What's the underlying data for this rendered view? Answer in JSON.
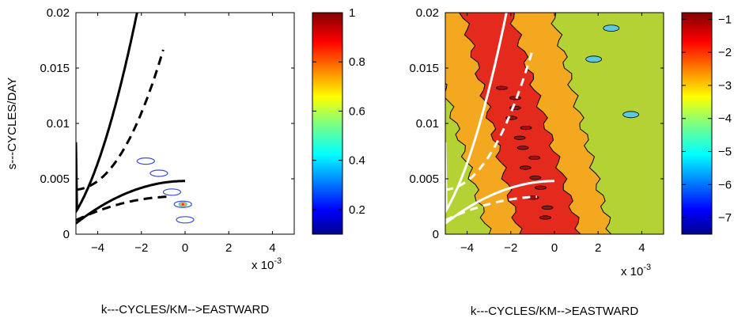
{
  "chart_data": [
    {
      "type": "heatmap",
      "panel": "left",
      "title": "",
      "xlabel": "k---CYCLES/KM-->EASTWARD",
      "ylabel": "s---CYCLES/DAY",
      "x_multiplier": "x 10",
      "x_multiplier_exp": "-3",
      "xlim": [
        -0.005,
        0.005
      ],
      "ylim": [
        0,
        0.02
      ],
      "x_ticks": [
        -4,
        -2,
        0,
        2,
        4
      ],
      "y_ticks": [
        "0",
        "0.005",
        "0.01",
        "0.015",
        "0.02"
      ],
      "colorbar": {
        "range": [
          0.1,
          1.0
        ],
        "ticks": [
          "0.2",
          "0.4",
          "0.6",
          "0.8",
          "1"
        ],
        "colormap": "jet"
      },
      "overlay_curves": [
        {
          "style": "solid",
          "shape": "dispersion curve rising from (-5e-3, 0.0083) to (-2.2e-3, 0.02)"
        },
        {
          "style": "dashed",
          "shape": "dispersion curve rising from (-5e-3, 0.0046) to (-1.1e-3, 0.02)"
        },
        {
          "style": "solid",
          "shape": "descending curve from (-5e-3, 0.0048) to (0, 0)"
        },
        {
          "style": "dashed",
          "shape": "descending curve from (-5e-3, 0.0032) to (-0.8e-3, 0.0012)"
        }
      ],
      "contour_blobs": [
        {
          "k": -0.0018,
          "s": 0.0066
        },
        {
          "k": -0.0012,
          "s": 0.0055
        },
        {
          "k": -0.0006,
          "s": 0.0038
        },
        {
          "k": -0.0001,
          "s": 0.0027
        },
        {
          "k": 0.0,
          "s": 0.0013
        }
      ]
    },
    {
      "type": "heatmap",
      "panel": "right",
      "title": "",
      "xlabel": "k---CYCLES/KM-->EASTWARD",
      "ylabel": "",
      "x_multiplier": "x 10",
      "x_multiplier_exp": "-3",
      "xlim": [
        -0.005,
        0.005
      ],
      "ylim": [
        0,
        0.02
      ],
      "x_ticks": [
        -4,
        -2,
        0,
        2,
        4
      ],
      "y_ticks": [
        "0",
        "0.005",
        "0.01",
        "0.015",
        "0.02"
      ],
      "colorbar": {
        "range": [
          -7.5,
          -0.8
        ],
        "ticks": [
          "-1",
          "-2",
          "-3",
          "-4",
          "-5",
          "-6",
          "-7"
        ],
        "colormap": "jet"
      },
      "bands": [
        {
          "level": -1.3,
          "color": "#e42a1d",
          "description": "central ridge along k = -3e-3 + 0.15*s"
        },
        {
          "level": -2.8,
          "color": "#f4a81f",
          "description": "orange band surrounding ridge"
        },
        {
          "level": -3.6,
          "color": "#b5d234",
          "description": "background level"
        }
      ],
      "overlay_color": "#ffffff"
    }
  ]
}
